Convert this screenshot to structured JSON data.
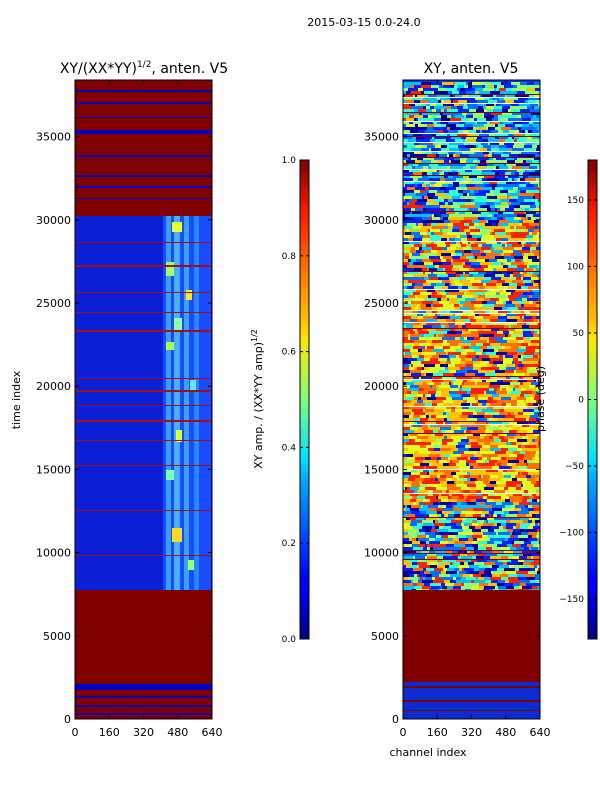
{
  "figure": {
    "suptitle": "2015-03-15 0.0-24.0",
    "colors": {
      "masked": "#800000",
      "low": "#00007f",
      "mid": "#0000ff",
      "band_bg": "#1133ee"
    }
  },
  "chart_data": [
    {
      "type": "heatmap",
      "title_prefix": "XY/(XX*YY)",
      "title_exp": "1/2",
      "title_suffix": ", anten. V5",
      "xlabel": "",
      "ylabel": "time index",
      "x_ticks": [
        "0",
        "160",
        "320",
        "480",
        "640"
      ],
      "y_ticks": [
        "0",
        "5000",
        "10000",
        "15000",
        "20000",
        "25000",
        "30000",
        "35000"
      ],
      "xlim": [
        0,
        640
      ],
      "ylim": [
        0,
        38400
      ],
      "masked_time_ranges": [
        [
          2600,
          7800
        ],
        [
          30200,
          38400
        ]
      ],
      "colorbar": {
        "label_prefix": "XY amp. / (XX*YY amp)",
        "label_exp": "1/2",
        "ticks": [
          "0.0",
          "0.2",
          "0.4",
          "0.6",
          "0.8",
          "1.0"
        ],
        "range": [
          0,
          1
        ],
        "colormap": "jet"
      }
    },
    {
      "type": "heatmap",
      "title": "XY, anten. V5",
      "xlabel": "channel index",
      "ylabel": "",
      "x_ticks": [
        "0",
        "160",
        "320",
        "480",
        "640"
      ],
      "y_ticks": [
        "0",
        "5000",
        "10000",
        "15000",
        "20000",
        "25000",
        "30000",
        "35000"
      ],
      "xlim": [
        0,
        640
      ],
      "ylim": [
        0,
        38400
      ],
      "masked_time_ranges": [
        [
          2600,
          7800
        ]
      ],
      "colorbar": {
        "label": "phase (deg)",
        "ticks": [
          "150",
          "100",
          "50",
          "0",
          "−50",
          "−100",
          "−150"
        ],
        "tick_values": [
          150,
          100,
          50,
          0,
          -50,
          -100,
          -150
        ],
        "range": [
          -180,
          180
        ],
        "colormap": "jet"
      }
    }
  ]
}
